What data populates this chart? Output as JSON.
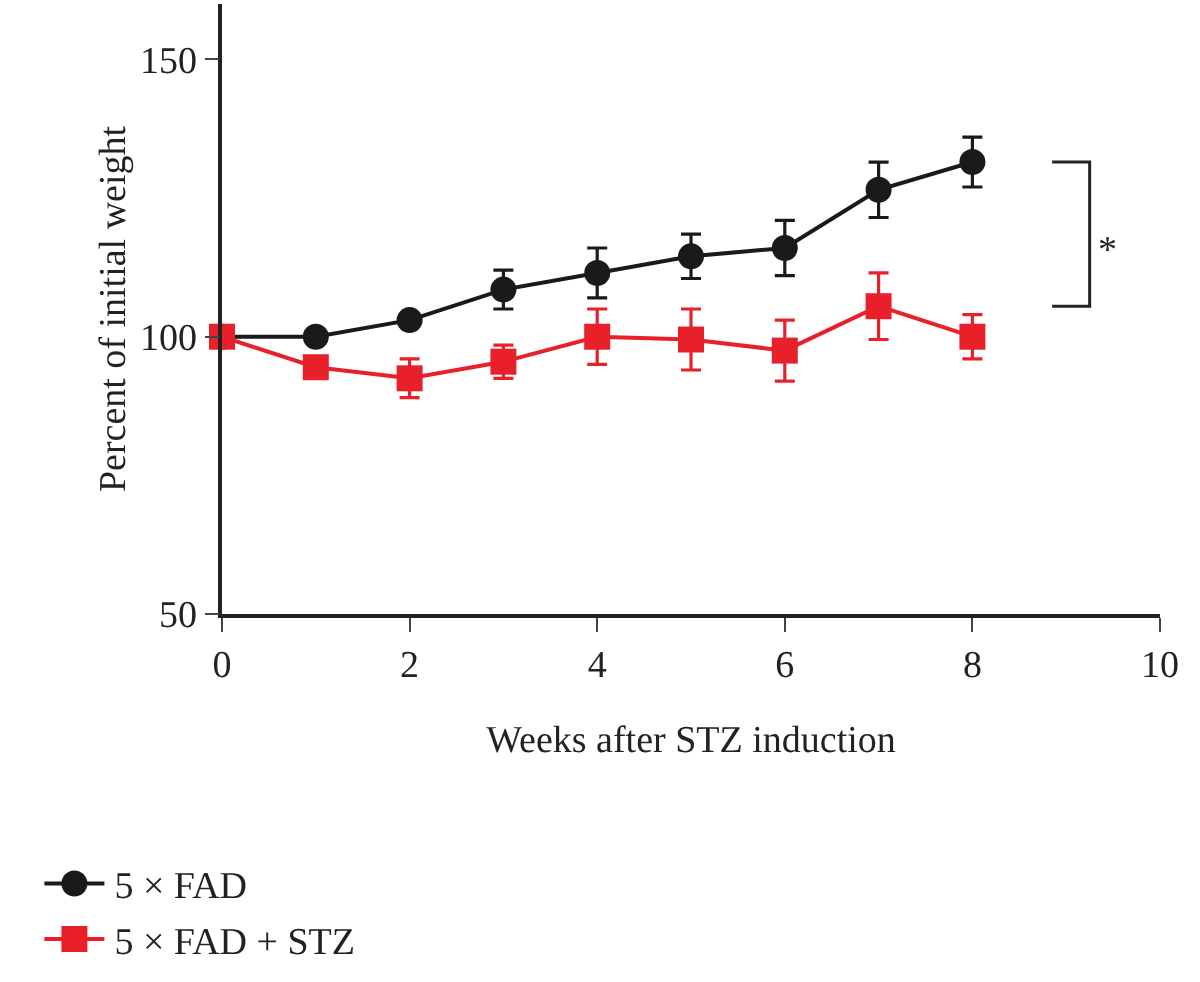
{
  "chart_data": {
    "type": "line",
    "xlabel": "Weeks after STZ induction",
    "ylabel": "Percent of initial weight",
    "x": [
      0,
      1,
      2,
      3,
      4,
      5,
      6,
      7,
      8
    ],
    "series": [
      {
        "name": "5 × FAD",
        "color": "#1a1a1a",
        "marker": "circle",
        "values": [
          100,
          100,
          103,
          108.5,
          111.5,
          114.5,
          116,
          126.5,
          131.5
        ],
        "errors": [
          null,
          null,
          1,
          3.5,
          4.5,
          4,
          5,
          5,
          4.5
        ]
      },
      {
        "name": "5 × FAD + STZ",
        "color": "#e8202a",
        "marker": "square",
        "values": [
          100,
          94.5,
          92.5,
          95.5,
          100,
          99.5,
          97.5,
          105.5,
          100
        ],
        "errors": [
          null,
          null,
          3.5,
          3,
          5,
          5.5,
          5.5,
          6,
          4
        ]
      }
    ],
    "xlim": [
      0,
      10
    ],
    "xticks": [
      0,
      2,
      4,
      6,
      8,
      10
    ],
    "ylim": [
      50,
      160
    ],
    "yticks": [
      50,
      100,
      150
    ],
    "annotations": [
      "*"
    ],
    "grid": false,
    "legend": "bottom left"
  }
}
